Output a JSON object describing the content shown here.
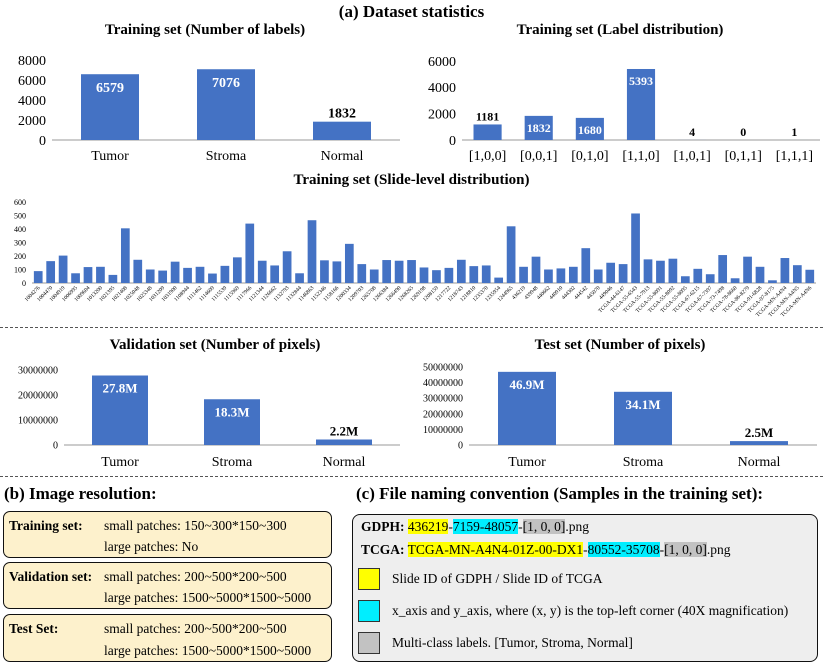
{
  "section_a_title": "(a) Dataset statistics",
  "section_b_title": "(b) Image resolution:",
  "section_c_title": "(c) File naming convention (Samples in the training set):",
  "chart_data": [
    {
      "id": "labels",
      "type": "bar",
      "title": "Training set (Number of labels)",
      "categories": [
        "Tumor",
        "Stroma",
        "Normal"
      ],
      "values": [
        6579,
        7076,
        1832
      ],
      "data_labels": [
        "6579",
        "7076",
        "1832"
      ],
      "yticks": [
        "0",
        "2000",
        "4000",
        "6000",
        "8000"
      ],
      "ylim": [
        0,
        8000
      ],
      "color": "#4472c4"
    },
    {
      "id": "labeldist",
      "type": "bar",
      "title": "Training set (Label distribution)",
      "categories": [
        "[1,0,0]",
        "[0,0,1]",
        "[0,1,0]",
        "[1,1,0]",
        "[1,0,1]",
        "[0,1,1]",
        "[1,1,1]"
      ],
      "values": [
        1181,
        1832,
        1680,
        5393,
        4,
        0,
        1
      ],
      "data_labels": [
        "1181",
        "1832",
        "1680",
        "5393",
        "4",
        "0",
        "1"
      ],
      "yticks": [
        "0",
        "2000",
        "4000",
        "6000"
      ],
      "ylim": [
        0,
        6000
      ],
      "color": "#4472c4"
    },
    {
      "id": "slides",
      "type": "bar",
      "title": "Training set (Slide-level distribution)",
      "categories": [
        "1004276",
        "1004470",
        "1004919",
        "1006995",
        "1009604",
        "1013200",
        "1021395",
        "1021408",
        "1025048",
        "1025348",
        "1031209",
        "1031900",
        "1108944",
        "1111462",
        "1114609",
        "1115539",
        "1115969",
        "1117966",
        "1121344",
        "1126662",
        "1132793",
        "1132844",
        "1146863",
        "1152346",
        "1158166",
        "1200334",
        "1209703",
        "1265708",
        "1266384",
        "1266490",
        "1268265",
        "1269198",
        "1208159",
        "1217722",
        "1218743",
        "1218810",
        "1235370",
        "1235954",
        "1244965",
        "436219",
        "439948",
        "440662",
        "440910",
        "444302",
        "444542",
        "445070",
        "449046",
        "TCGA-44-6147",
        "TCGA-55-6543",
        "TCGA-55-7913",
        "TCGA-55-8091",
        "TCGA-55-8092",
        "TCGA-55-8095",
        "TCGA-67-6215",
        "TCGA-67-7397",
        "TCGA-73-7498",
        "TCGA-78-8660",
        "TCGA-86-8279",
        "TCGA-91-6828",
        "TCGA-97-8175",
        "TCGA-MN-A4N4",
        "TCGA-MN-A4N5",
        "TCGA-MN-A4N6"
      ],
      "values": [
        88,
        162,
        203,
        72,
        118,
        120,
        60,
        405,
        172,
        100,
        92,
        158,
        112,
        120,
        70,
        127,
        190,
        440,
        165,
        130,
        235,
        72,
        465,
        168,
        160,
        290,
        140,
        100,
        170,
        165,
        170,
        115,
        95,
        112,
        172,
        125,
        130,
        40,
        420,
        120,
        195,
        100,
        108,
        120,
        258,
        100,
        150,
        140,
        515,
        175,
        165,
        180,
        50,
        105,
        65,
        207,
        35,
        195,
        120,
        20,
        185,
        132,
        98
      ],
      "yticks": [
        "0",
        "100",
        "200",
        "300",
        "400",
        "500",
        "600"
      ],
      "ylim": [
        0,
        600
      ],
      "color": "#4472c4"
    },
    {
      "id": "valpix",
      "type": "bar",
      "title": "Validation set (Number of pixels)",
      "categories": [
        "Tumor",
        "Stroma",
        "Normal"
      ],
      "values": [
        27800000,
        18300000,
        2200000
      ],
      "data_labels": [
        "27.8M",
        "18.3M",
        "2.2M"
      ],
      "yticks": [
        "0",
        "10000000",
        "20000000",
        "30000000"
      ],
      "ylim": [
        0,
        30000000
      ],
      "color": "#4472c4"
    },
    {
      "id": "testpix",
      "type": "bar",
      "title": "Test set (Number of pixels)",
      "categories": [
        "Tumor",
        "Stroma",
        "Normal"
      ],
      "values": [
        46900000,
        34100000,
        2500000
      ],
      "data_labels": [
        "46.9M",
        "34.1M",
        "2.5M"
      ],
      "yticks": [
        "0",
        "10000000",
        "20000000",
        "30000000",
        "40000000",
        "50000000"
      ],
      "ylim": [
        0,
        50000000
      ],
      "color": "#4472c4"
    }
  ],
  "resolution": [
    {
      "label": "Training set:",
      "small": "small patches: 150~300*150~300",
      "large": "large patches: No"
    },
    {
      "label": "Validation set:",
      "small": "small patches: 200~500*200~500",
      "large": "large patches: 1500~5000*1500~5000"
    },
    {
      "label": "Test Set:",
      "small": "small patches: 200~500*200~500",
      "large": "large patches: 1500~5000*1500~5000"
    }
  ],
  "naming": {
    "gdph_label": "GDPH:",
    "gdph_id": "436219",
    "sep1": "-",
    "gdph_xy": "7159-48057",
    "sep2": "-",
    "gdph_labels": "[1, 0, 0]",
    "gdph_ext": ".png",
    "tcga_label": "TCGA:",
    "tcga_id": "TCGA-MN-A4N4-01Z-00-DX1",
    "sep3": "-",
    "tcga_xy": "80552-35708",
    "sep4": "-",
    "tcga_labels": "[1, 0, 0]",
    "tcga_ext": ".png",
    "legend": [
      {
        "color": "#ffff00",
        "text": "Slide ID of GDPH / Slide ID of TCGA"
      },
      {
        "color": "#00eeff",
        "text": "x_axis and y_axis, where (x, y) is the top-left corner (40X magnification)"
      },
      {
        "color": "#c2c2c2",
        "text": "Multi-class labels. [Tumor, Stroma, Normal]"
      }
    ]
  }
}
